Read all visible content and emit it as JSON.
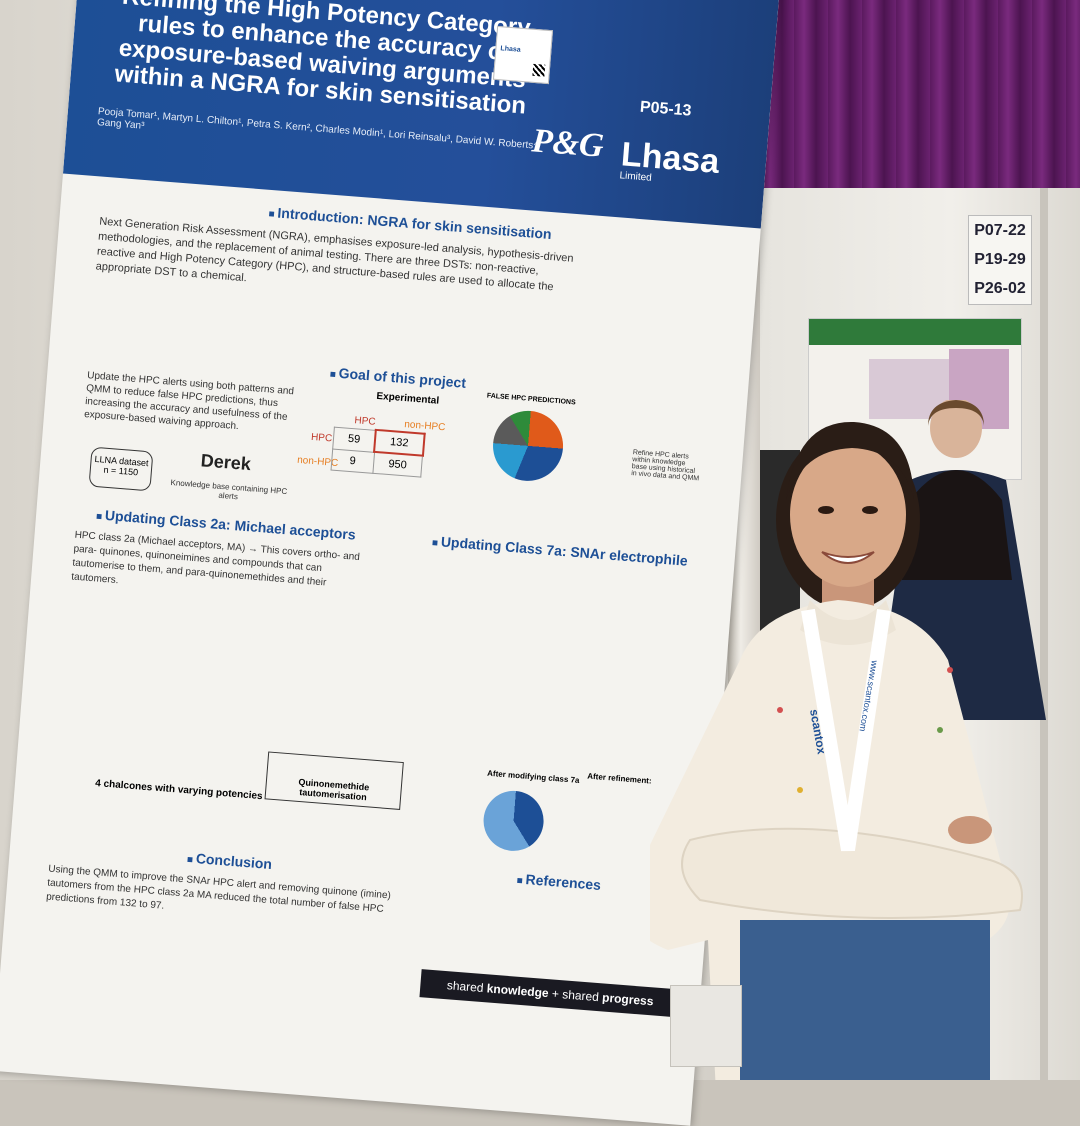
{
  "poster": {
    "title": "Refining the High Potency Category rules to enhance the accuracy of exposure-based waiving arguments within a NGRA for skin sensitisation",
    "authors": "Pooja Tomar¹, Martyn L. Chilton¹, Petra S. Kern², Charles Modin¹, Lori Reinsalu³, David W. Roberts⁴, Gang Yan³",
    "code": "P05-13",
    "logo_pg": "P&G",
    "logo_lhasa": "Lhasa",
    "logo_lhasa_sub": "Limited",
    "intro_title": "Introduction: NGRA for skin sensitisation",
    "intro_text": "Next Generation Risk Assessment (NGRA), emphasises exposure-led analysis, hypothesis-driven methodologies, and the replacement of animal testing. There are three DSTs: non-reactive, reactive and High Potency Category (HPC), and structure-based rules are used to allocate the appropriate DST to a chemical.",
    "goal_title": "Goal of this project",
    "goal_text": "Update the HPC alerts using both patterns and QMM to reduce false HPC predictions, thus increasing the accuracy and usefulness of the exposure-based waiving approach.",
    "llna": "LLNA dataset",
    "llna_n": "n = 1150",
    "derek": "Derek",
    "derek_sub": "Knowledge base containing HPC alerts",
    "experimental": "Experimental",
    "hpc": "HPC",
    "non_hpc": "non-HPC",
    "matrix": [
      "59",
      "132",
      "9",
      "950"
    ],
    "false_hpc_title": "FALSE HPC PREDICTIONS",
    "refine_note": "Refine HPC alerts within knowledge base using historical in vivo data and QMM",
    "class2a_title": "Updating Class 2a: Michael acceptors",
    "class2a_text": "HPC class 2a (Michael acceptors, MA) → This covers ortho- and para- quinones, quinoneimines and compounds that can tautomerise to them, and para-quinonemethides and their tautomers.",
    "chalcones": "4 chalcones with varying potencies",
    "tautomer": "Quinonemethide tautomerisation",
    "class7a_title": "Updating Class 7a: SNAr electrophile",
    "after_modifying": "After modifying class 7a",
    "after_refinement": "After refinement:",
    "conclusion_title": "Conclusion",
    "conclusion_text": "Using the QMM to improve the SNAr HPC alert and removing quinone (imine) tautomers from the HPC class 2a MA reduced the total number of false HPC predictions from 132 to 97.",
    "references_title": "References",
    "tagline_a": "shared",
    "tagline_b": "knowledge",
    "tagline_c": "shared",
    "tagline_d": "progress"
  },
  "qr_card": "Lhasa",
  "board_numbers": [
    "P07-22",
    "P19-29",
    "P26-02"
  ],
  "lanyard": "scantox",
  "lanyard_url": "www.scantox.com"
}
